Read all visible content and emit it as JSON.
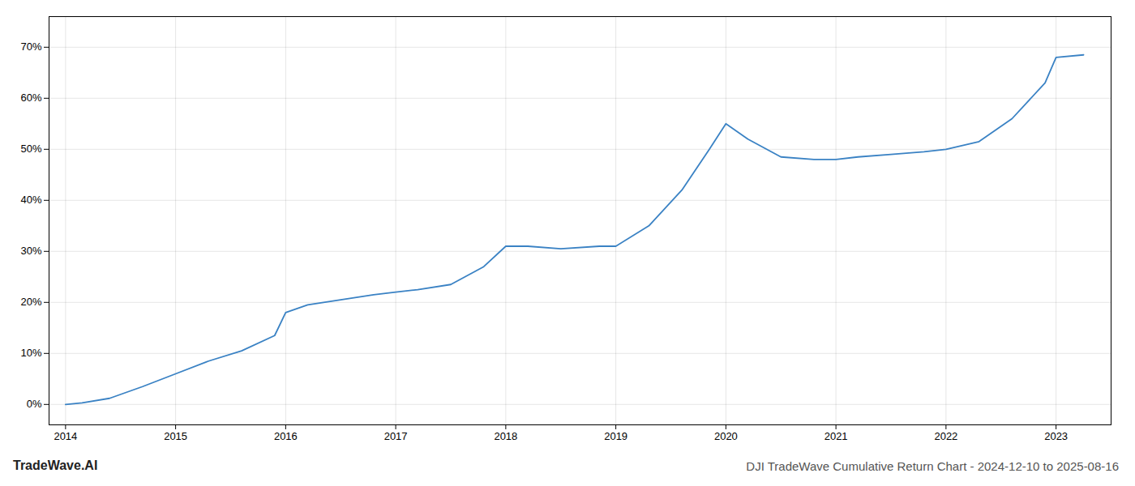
{
  "chart_data": {
    "type": "line",
    "title": "DJI TradeWave Cumulative Return Chart - 2024-12-10 to 2025-08-16",
    "annotations": [
      "TradeWave.AI"
    ],
    "x": [
      2014.0,
      2014.15,
      2014.4,
      2014.7,
      2015.0,
      2015.3,
      2015.6,
      2015.9,
      2016.0,
      2016.2,
      2016.5,
      2016.8,
      2017.0,
      2017.2,
      2017.5,
      2017.8,
      2018.0,
      2018.2,
      2018.5,
      2018.85,
      2019.0,
      2019.3,
      2019.6,
      2019.85,
      2020.0,
      2020.2,
      2020.5,
      2020.8,
      2021.0,
      2021.2,
      2021.5,
      2021.8,
      2022.0,
      2022.3,
      2022.6,
      2022.9,
      2023.0,
      2023.25
    ],
    "values": [
      0.0,
      0.3,
      1.2,
      3.5,
      6.0,
      8.5,
      10.5,
      13.5,
      18.0,
      19.5,
      20.5,
      21.5,
      22.0,
      22.5,
      23.5,
      27.0,
      31.0,
      31.0,
      30.5,
      31.0,
      31.0,
      35.0,
      42.0,
      50.0,
      55.0,
      52.0,
      48.5,
      48.0,
      48.0,
      48.5,
      49.0,
      49.5,
      50.0,
      51.5,
      56.0,
      63.0,
      68.0,
      68.5
    ],
    "color": "#3a82c4",
    "xlim": [
      2013.85,
      2023.5
    ],
    "xticks": [
      2014,
      2015,
      2016,
      2017,
      2018,
      2019,
      2020,
      2021,
      2022,
      2023
    ],
    "ylim": [
      -4,
      76
    ],
    "yticks": [
      {
        "value": 0,
        "label": "0%"
      },
      {
        "value": 10,
        "label": "10%"
      },
      {
        "value": 20,
        "label": "20%"
      },
      {
        "value": 30,
        "label": "30%"
      },
      {
        "value": 40,
        "label": "40%"
      },
      {
        "value": 50,
        "label": "50%"
      },
      {
        "value": 60,
        "label": "60%"
      },
      {
        "value": 70,
        "label": "70%"
      }
    ],
    "grid": true
  }
}
